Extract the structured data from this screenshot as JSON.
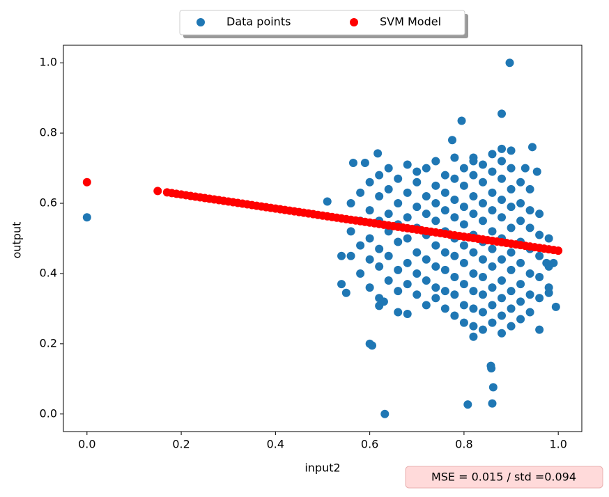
{
  "chart_data": {
    "type": "scatter",
    "x_label": "input2",
    "y_label": "output",
    "annotation": "MSE = 0.015 / std =0.094",
    "legend": "upper center outside",
    "xlim": [
      -0.05,
      1.05
    ],
    "ylim": [
      -0.05,
      1.05
    ],
    "xticks": [
      {
        "value": 0,
        "label": "0.0"
      },
      {
        "value": 0.2,
        "label": "0.2"
      },
      {
        "value": 0.4,
        "label": "0.4"
      },
      {
        "value": 0.6,
        "label": "0.6"
      },
      {
        "value": 0.8,
        "label": "0.8"
      },
      {
        "value": 1,
        "label": "1.0"
      }
    ],
    "yticks": [
      {
        "value": 0,
        "label": "0.0"
      },
      {
        "value": 0.2,
        "label": "0.2"
      },
      {
        "value": 0.4,
        "label": "0.4"
      },
      {
        "value": 0.6,
        "label": "0.6"
      },
      {
        "value": 0.8,
        "label": "0.8"
      },
      {
        "value": 1,
        "label": "1.0"
      }
    ],
    "series": [
      {
        "name": "Data points",
        "color": "#1f77b4",
        "x": [
          0.0,
          0.897,
          0.88,
          0.795,
          0.775,
          0.945,
          0.632,
          0.808,
          0.86,
          0.862,
          0.857,
          0.858,
          0.6,
          0.605,
          0.51,
          0.995,
          0.96,
          0.82,
          0.617,
          0.99,
          0.975,
          0.54,
          0.55,
          0.66,
          0.68,
          0.62,
          0.63,
          0.565,
          0.59,
          0.955,
          0.93,
          0.88,
          0.9,
          0.82,
          0.54,
          0.98,
          0.56,
          0.56,
          0.56,
          0.58,
          0.58,
          0.58,
          0.58,
          0.6,
          0.6,
          0.6,
          0.6,
          0.6,
          0.62,
          0.62,
          0.62,
          0.62,
          0.62,
          0.62,
          0.64,
          0.64,
          0.64,
          0.64,
          0.64,
          0.64,
          0.66,
          0.66,
          0.66,
          0.66,
          0.66,
          0.66,
          0.68,
          0.68,
          0.68,
          0.68,
          0.68,
          0.68,
          0.7,
          0.7,
          0.7,
          0.7,
          0.7,
          0.7,
          0.7,
          0.72,
          0.72,
          0.72,
          0.72,
          0.72,
          0.72,
          0.72,
          0.74,
          0.74,
          0.74,
          0.74,
          0.74,
          0.74,
          0.74,
          0.74,
          0.76,
          0.76,
          0.76,
          0.76,
          0.76,
          0.76,
          0.76,
          0.76,
          0.78,
          0.78,
          0.78,
          0.78,
          0.78,
          0.78,
          0.78,
          0.78,
          0.78,
          0.8,
          0.8,
          0.8,
          0.8,
          0.8,
          0.8,
          0.8,
          0.8,
          0.8,
          0.82,
          0.82,
          0.82,
          0.82,
          0.82,
          0.82,
          0.82,
          0.82,
          0.82,
          0.82,
          0.84,
          0.84,
          0.84,
          0.84,
          0.84,
          0.84,
          0.84,
          0.84,
          0.84,
          0.84,
          0.86,
          0.86,
          0.86,
          0.86,
          0.86,
          0.86,
          0.86,
          0.86,
          0.86,
          0.86,
          0.88,
          0.88,
          0.88,
          0.88,
          0.88,
          0.88,
          0.88,
          0.88,
          0.88,
          0.88,
          0.9,
          0.9,
          0.9,
          0.9,
          0.9,
          0.9,
          0.9,
          0.9,
          0.9,
          0.92,
          0.92,
          0.92,
          0.92,
          0.92,
          0.92,
          0.92,
          0.92,
          0.94,
          0.94,
          0.94,
          0.94,
          0.94,
          0.94,
          0.94,
          0.96,
          0.96,
          0.96,
          0.96,
          0.96,
          0.98,
          0.98,
          0.98
        ],
        "y": [
          0.56,
          1.0,
          0.855,
          0.835,
          0.78,
          0.76,
          0.0,
          0.027,
          0.03,
          0.076,
          0.137,
          0.13,
          0.2,
          0.195,
          0.605,
          0.305,
          0.24,
          0.22,
          0.742,
          0.43,
          0.43,
          0.37,
          0.345,
          0.29,
          0.285,
          0.308,
          0.32,
          0.715,
          0.715,
          0.69,
          0.7,
          0.755,
          0.75,
          0.73,
          0.45,
          0.345,
          0.45,
          0.52,
          0.6,
          0.4,
          0.48,
          0.55,
          0.63,
          0.36,
          0.44,
          0.5,
          0.58,
          0.66,
          0.33,
          0.42,
          0.47,
          0.55,
          0.62,
          0.68,
          0.38,
          0.45,
          0.52,
          0.57,
          0.64,
          0.7,
          0.35,
          0.41,
          0.49,
          0.54,
          0.6,
          0.67,
          0.37,
          0.43,
          0.5,
          0.56,
          0.63,
          0.71,
          0.34,
          0.4,
          0.46,
          0.53,
          0.59,
          0.66,
          0.69,
          0.31,
          0.38,
          0.44,
          0.51,
          0.57,
          0.62,
          0.7,
          0.33,
          0.36,
          0.42,
          0.48,
          0.55,
          0.6,
          0.65,
          0.72,
          0.3,
          0.35,
          0.41,
          0.46,
          0.52,
          0.58,
          0.63,
          0.68,
          0.28,
          0.34,
          0.39,
          0.45,
          0.5,
          0.56,
          0.61,
          0.67,
          0.73,
          0.26,
          0.31,
          0.37,
          0.43,
          0.48,
          0.54,
          0.59,
          0.65,
          0.7,
          0.25,
          0.3,
          0.35,
          0.4,
          0.46,
          0.51,
          0.57,
          0.62,
          0.68,
          0.72,
          0.24,
          0.29,
          0.34,
          0.39,
          0.44,
          0.49,
          0.55,
          0.6,
          0.66,
          0.71,
          0.26,
          0.31,
          0.36,
          0.42,
          0.47,
          0.52,
          0.58,
          0.63,
          0.69,
          0.74,
          0.23,
          0.28,
          0.33,
          0.38,
          0.44,
          0.5,
          0.56,
          0.61,
          0.67,
          0.72,
          0.25,
          0.3,
          0.35,
          0.41,
          0.46,
          0.53,
          0.59,
          0.64,
          0.7,
          0.27,
          0.32,
          0.37,
          0.43,
          0.49,
          0.55,
          0.6,
          0.66,
          0.29,
          0.34,
          0.4,
          0.47,
          0.53,
          0.58,
          0.64,
          0.33,
          0.39,
          0.45,
          0.51,
          0.57,
          0.36,
          0.42,
          0.5
        ]
      },
      {
        "name": "SVM Model",
        "color": "#ff0000",
        "x": [
          0.0,
          0.15,
          0.17,
          0.18,
          0.19,
          0.2,
          0.21,
          0.22,
          0.23,
          0.24,
          0.25,
          0.26,
          0.27,
          0.28,
          0.29,
          0.3,
          0.31,
          0.32,
          0.33,
          0.34,
          0.35,
          0.36,
          0.37,
          0.38,
          0.39,
          0.4,
          0.41,
          0.42,
          0.43,
          0.44,
          0.45,
          0.46,
          0.47,
          0.48,
          0.49,
          0.5,
          0.51,
          0.52,
          0.53,
          0.54,
          0.55,
          0.56,
          0.57,
          0.58,
          0.59,
          0.6,
          0.61,
          0.62,
          0.63,
          0.64,
          0.65,
          0.66,
          0.67,
          0.68,
          0.69,
          0.7,
          0.71,
          0.72,
          0.73,
          0.74,
          0.75,
          0.76,
          0.77,
          0.78,
          0.79,
          0.8,
          0.81,
          0.82,
          0.83,
          0.84,
          0.85,
          0.86,
          0.87,
          0.88,
          0.89,
          0.9,
          0.91,
          0.92,
          0.93,
          0.94,
          0.95,
          0.96,
          0.97,
          0.98,
          0.99,
          1.0
        ],
        "y": [
          0.66,
          0.635,
          0.631,
          0.629,
          0.627,
          0.625,
          0.623,
          0.621,
          0.619,
          0.617,
          0.615,
          0.613,
          0.611,
          0.609,
          0.607,
          0.605,
          0.603,
          0.601,
          0.599,
          0.597,
          0.595,
          0.593,
          0.591,
          0.589,
          0.587,
          0.585,
          0.583,
          0.581,
          0.579,
          0.577,
          0.575,
          0.573,
          0.571,
          0.569,
          0.567,
          0.565,
          0.563,
          0.561,
          0.559,
          0.557,
          0.555,
          0.553,
          0.551,
          0.549,
          0.547,
          0.545,
          0.543,
          0.541,
          0.539,
          0.537,
          0.535,
          0.533,
          0.531,
          0.529,
          0.527,
          0.525,
          0.523,
          0.521,
          0.519,
          0.517,
          0.515,
          0.513,
          0.511,
          0.509,
          0.507,
          0.505,
          0.503,
          0.501,
          0.499,
          0.497,
          0.495,
          0.493,
          0.491,
          0.489,
          0.487,
          0.485,
          0.483,
          0.481,
          0.479,
          0.477,
          0.475,
          0.473,
          0.471,
          0.469,
          0.467,
          0.465
        ]
      }
    ]
  }
}
